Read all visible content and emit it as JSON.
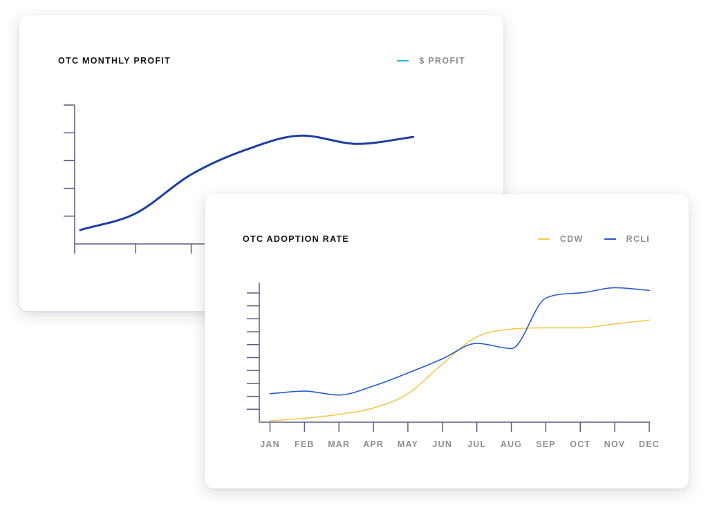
{
  "colors": {
    "axis": "#5c5a86",
    "profit_line": "#1a3ea6",
    "profit_legend": "#28b8d8",
    "cdw": "#f2c94c",
    "rcli": "#2459d1",
    "tick_text": "#8e8e96"
  },
  "chart_data": [
    {
      "type": "line",
      "title": "OTC MONTHLY PROFIT",
      "legend": "top-right",
      "x": [
        1,
        2,
        3,
        4,
        5,
        6,
        7
      ],
      "series": [
        {
          "name": "$ PROFIT",
          "values": [
            0.5,
            1.1,
            2.5,
            3.4,
            3.9,
            3.6,
            3.85
          ]
        }
      ],
      "ylim": [
        0,
        5
      ],
      "xlim": [
        0.9,
        8.5
      ],
      "grid": false
    },
    {
      "type": "line",
      "title": "OTC ADOPTION RATE",
      "legend": "top-right",
      "categories": [
        "JAN",
        "FEB",
        "MAR",
        "APR",
        "MAY",
        "JUN",
        "JUL",
        "AUG",
        "SEP",
        "OCT",
        "NOV",
        "DEC"
      ],
      "series": [
        {
          "name": "CDW",
          "values": [
            0.1,
            0.3,
            0.6,
            1.1,
            2.2,
            4.5,
            6.6,
            7.2,
            7.3,
            7.3,
            7.6,
            7.9
          ]
        },
        {
          "name": "RCLI",
          "values": [
            2.2,
            2.4,
            2.1,
            2.8,
            3.8,
            4.9,
            6.1,
            5.7,
            9.6,
            10.0,
            10.4,
            10.2
          ]
        }
      ],
      "ylim": [
        0,
        10.8
      ],
      "grid": false
    }
  ]
}
